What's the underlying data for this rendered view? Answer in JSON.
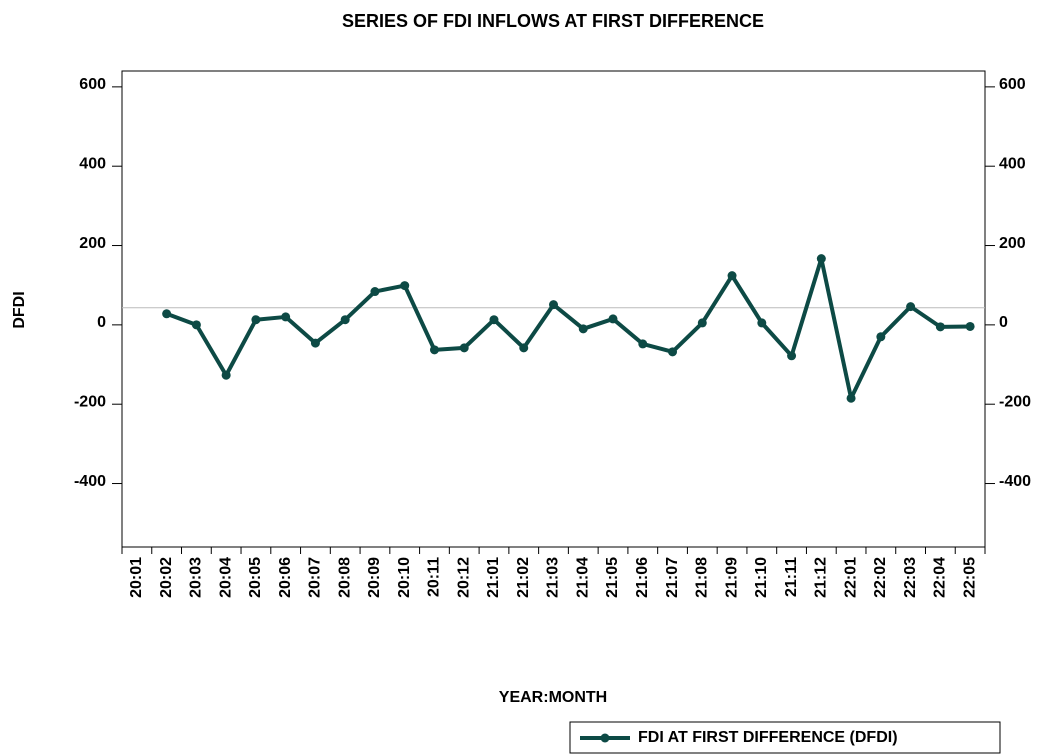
{
  "chart_data": {
    "type": "line",
    "title": "SERIES OF FDI INFLOWS AT FIRST DIFFERENCE",
    "xlabel": "YEAR:MONTH",
    "ylabel": "DFDI",
    "categories": [
      "20:01",
      "20:02",
      "20:03",
      "20:04",
      "20:05",
      "20:06",
      "20:07",
      "20:08",
      "20:09",
      "20:10",
      "20:11",
      "20:12",
      "21:01",
      "21:02",
      "21:03",
      "21:04",
      "21:05",
      "21:06",
      "21:07",
      "21:08",
      "21:09",
      "21:10",
      "21:11",
      "21:12",
      "22:01",
      "22:02",
      "22:03",
      "22:04",
      "22:05"
    ],
    "series": [
      {
        "name": "FDI AT FIRST DIFFERENCE (DFDI)",
        "color": "#0d4a45",
        "values": [
          null,
          28,
          0,
          -127,
          13,
          20,
          -46,
          13,
          84,
          99,
          -63,
          -58,
          13,
          -58,
          51,
          -10,
          15,
          -48,
          -68,
          5,
          124,
          5,
          -78,
          167,
          -185,
          -30,
          46,
          -5,
          -4
        ]
      }
    ],
    "ylim": [
      -560,
      640
    ],
    "yticks": [
      -400,
      -200,
      0,
      200,
      400,
      600
    ],
    "y2lim": [
      -560,
      640
    ],
    "y2ticks": [
      -400,
      -200,
      0,
      200,
      400,
      600
    ],
    "reference_line": 43,
    "legend": "bottom-right"
  }
}
